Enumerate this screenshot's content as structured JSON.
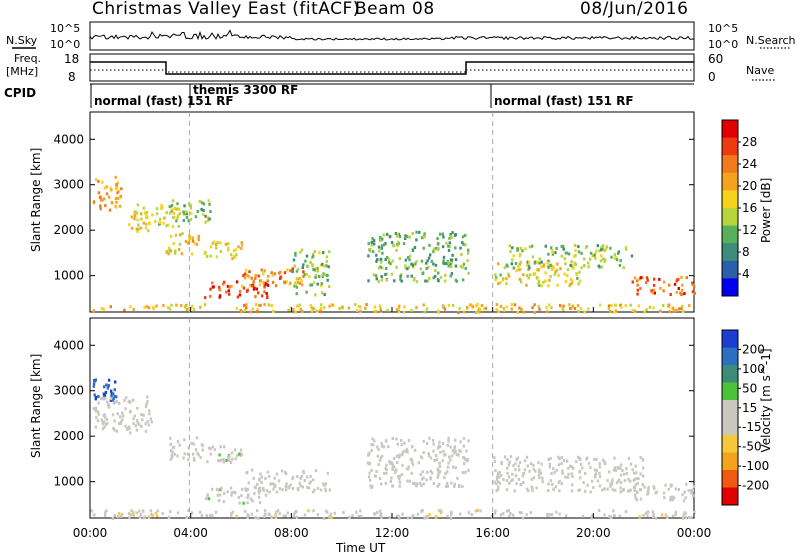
{
  "header": {
    "title": "Christmas Valley East (fitACF)",
    "beam": "Beam 08",
    "date": "08/Jun/2016"
  },
  "strips": {
    "nsky_label": "N.Sky",
    "nsearch_label": "N.Search",
    "nsky_ticks": [
      "10^5",
      "10^0"
    ],
    "freq_label_1": "Freq.",
    "freq_label_2": "[MHz]",
    "freq_ticks": [
      "18",
      "8"
    ],
    "nave_label": "Nave",
    "nave_ticks": [
      "60",
      "0"
    ],
    "cpid_label": "CPID"
  },
  "cpid_modes": [
    {
      "label": "normal (fast) 151 RF",
      "start_hour": 0
    },
    {
      "label": "themis 3300 RF",
      "start_hour": 4
    },
    {
      "label": "normal (fast) 151 RF",
      "start_hour": 16
    }
  ],
  "colors": {
    "power_scale": [
      "#0000ee",
      "#2b5fa8",
      "#3d8c7a",
      "#58b05a",
      "#b7d43a",
      "#f5d21c",
      "#f5a31c",
      "#f07a1c",
      "#ee3a10",
      "#e00000"
    ],
    "velocity_scale": [
      "#e00000",
      "#f05a10",
      "#f5a31c",
      "#f5c73a",
      "#c8c8c0",
      "#c8c8c0",
      "#4cc23a",
      "#3d8c7a",
      "#2b6fc0",
      "#1a3fd0"
    ]
  },
  "chart_data": [
    {
      "type": "heatmap",
      "name": "power",
      "xlabel": "",
      "ylabel": "Slant Range [km]",
      "x_ticks": [
        "00:00",
        "04:00",
        "08:00",
        "12:00",
        "16:00",
        "20:00",
        "00:00"
      ],
      "y_ticks": [
        "1000",
        "2000",
        "3000",
        "4000"
      ],
      "ylim": [
        200,
        4600
      ],
      "colorbar_label": "Power [dB]",
      "colorbar_ticks": [
        "28",
        "24",
        "20",
        "16",
        "12",
        "8",
        "4"
      ],
      "clim": [
        0,
        30
      ],
      "echo_regions": [
        {
          "t0": 0.1,
          "t1": 1.2,
          "r0": 2400,
          "r1": 3200,
          "power": 20
        },
        {
          "t0": 1.5,
          "t1": 2.5,
          "r0": 2000,
          "r1": 2600,
          "power": 16
        },
        {
          "t0": 2.5,
          "t1": 3.5,
          "r0": 2100,
          "r1": 2600,
          "power": 14
        },
        {
          "t0": 3.0,
          "t1": 4.3,
          "r0": 1500,
          "r1": 2000,
          "power": 18
        },
        {
          "t0": 3.2,
          "t1": 4.8,
          "r0": 2200,
          "r1": 2700,
          "power": 12
        },
        {
          "t0": 4.5,
          "t1": 6.0,
          "r0": 1400,
          "r1": 1800,
          "power": 16
        },
        {
          "t0": 4.5,
          "t1": 7.2,
          "r0": 550,
          "r1": 900,
          "power": 26
        },
        {
          "t0": 6.0,
          "t1": 8.6,
          "r0": 800,
          "r1": 1200,
          "power": 22
        },
        {
          "t0": 8.0,
          "t1": 9.5,
          "r0": 600,
          "r1": 1600,
          "power": 12
        },
        {
          "t0": 11.0,
          "t1": 15.0,
          "r0": 900,
          "r1": 2000,
          "power": 10
        },
        {
          "t0": 16.0,
          "t1": 19.5,
          "r0": 800,
          "r1": 1300,
          "power": 16
        },
        {
          "t0": 16.5,
          "t1": 21.5,
          "r0": 1200,
          "r1": 1700,
          "power": 12
        },
        {
          "t0": 21.5,
          "t1": 24.0,
          "r0": 600,
          "r1": 1000,
          "power": 24
        },
        {
          "t0": 0.0,
          "t1": 24.0,
          "r0": 220,
          "r1": 400,
          "power": 18
        }
      ]
    },
    {
      "type": "heatmap",
      "name": "velocity",
      "xlabel": "Time UT",
      "ylabel": "Slant Range [km]",
      "x_ticks": [
        "00:00",
        "04:00",
        "08:00",
        "12:00",
        "16:00",
        "20:00",
        "00:00"
      ],
      "y_ticks": [
        "1000",
        "2000",
        "3000",
        "4000"
      ],
      "ylim": [
        200,
        4600
      ],
      "colorbar_label": "Velocity [m s^-1]",
      "colorbar_ticks": [
        "200",
        "100",
        "50",
        "15",
        "-15",
        "-50",
        "-100",
        "-200"
      ],
      "clim": [
        -250,
        250
      ],
      "echo_regions": [
        {
          "t0": 0.1,
          "t1": 1.0,
          "r0": 2800,
          "r1": 3300,
          "velocity": 220
        },
        {
          "t0": 0.1,
          "t1": 2.5,
          "r0": 2100,
          "r1": 2900,
          "velocity": 0
        },
        {
          "t0": 3.0,
          "t1": 4.5,
          "r0": 1500,
          "r1": 2000,
          "velocity": 0
        },
        {
          "t0": 4.5,
          "t1": 6.0,
          "r0": 1400,
          "r1": 1800,
          "velocity": 40
        },
        {
          "t0": 4.5,
          "t1": 7.0,
          "r0": 550,
          "r1": 900,
          "velocity": 40
        },
        {
          "t0": 6.0,
          "t1": 9.5,
          "r0": 800,
          "r1": 1300,
          "velocity": 0
        },
        {
          "t0": 11.0,
          "t1": 15.0,
          "r0": 900,
          "r1": 2000,
          "velocity": 0
        },
        {
          "t0": 16.0,
          "t1": 22.0,
          "r0": 800,
          "r1": 1600,
          "velocity": 0
        },
        {
          "t0": 21.5,
          "t1": 24.0,
          "r0": 600,
          "r1": 1000,
          "velocity": 0
        },
        {
          "t0": 0.0,
          "t1": 24.0,
          "r0": 220,
          "r1": 400,
          "velocity": -40
        }
      ]
    }
  ]
}
